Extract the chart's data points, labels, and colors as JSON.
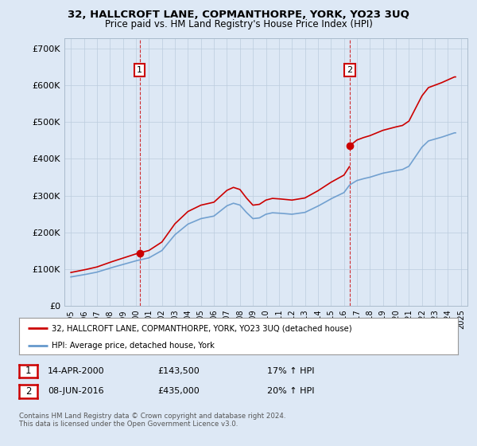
{
  "title": "32, HALLCROFT LANE, COPMANTHORPE, YORK, YO23 3UQ",
  "subtitle": "Price paid vs. HM Land Registry's House Price Index (HPI)",
  "ylabel_ticks": [
    "£0",
    "£100K",
    "£200K",
    "£300K",
    "£400K",
    "£500K",
    "£600K",
    "£700K"
  ],
  "ytick_values": [
    0,
    100000,
    200000,
    300000,
    400000,
    500000,
    600000,
    700000
  ],
  "ylim": [
    0,
    730000
  ],
  "xlim_start": 1994.5,
  "xlim_end": 2025.5,
  "background_color": "#dde8f5",
  "plot_background": "#dde8f5",
  "red_color": "#cc0000",
  "blue_color": "#6699cc",
  "sale1_x": 2000.28,
  "sale1_y": 143500,
  "sale2_x": 2016.44,
  "sale2_y": 435000,
  "legend_line1": "32, HALLCROFT LANE, COPMANTHORPE, YORK, YO23 3UQ (detached house)",
  "legend_line2": "HPI: Average price, detached house, York",
  "table_row1": [
    "1",
    "14-APR-2000",
    "£143,500",
    "17% ↑ HPI"
  ],
  "table_row2": [
    "2",
    "08-JUN-2016",
    "£435,000",
    "20% ↑ HPI"
  ],
  "footnote": "Contains HM Land Registry data © Crown copyright and database right 2024.\nThis data is licensed under the Open Government Licence v3.0."
}
